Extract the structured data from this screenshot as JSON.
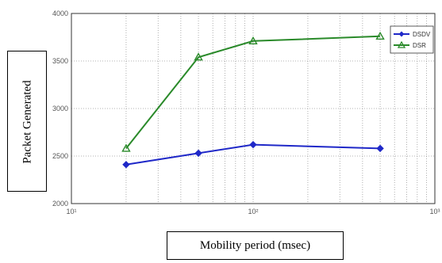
{
  "chart_data": {
    "type": "line",
    "title": "",
    "xlabel": "Mobility period (msec)",
    "ylabel": "Packet Generated",
    "x_scale": "log",
    "xlim": [
      10,
      1000
    ],
    "ylim": [
      2000,
      4000
    ],
    "x_ticks": [
      "10¹",
      "10²",
      "10³"
    ],
    "y_ticks": [
      "2000",
      "2500",
      "3000",
      "3500",
      "4000"
    ],
    "y_tick_values": [
      2000,
      2500,
      3000,
      3500,
      4000
    ],
    "grid": true,
    "legend_position": "top-right",
    "series": [
      {
        "name": "DSDV",
        "color": "#1f28c8",
        "marker": "diamond",
        "x": [
          20,
          50,
          100,
          500
        ],
        "y": [
          2410,
          2530,
          2620,
          2580
        ]
      },
      {
        "name": "DSR",
        "color": "#2a8a2a",
        "marker": "triangle",
        "x": [
          20,
          50,
          100,
          500
        ],
        "y": [
          2580,
          3540,
          3710,
          3760
        ]
      }
    ]
  }
}
